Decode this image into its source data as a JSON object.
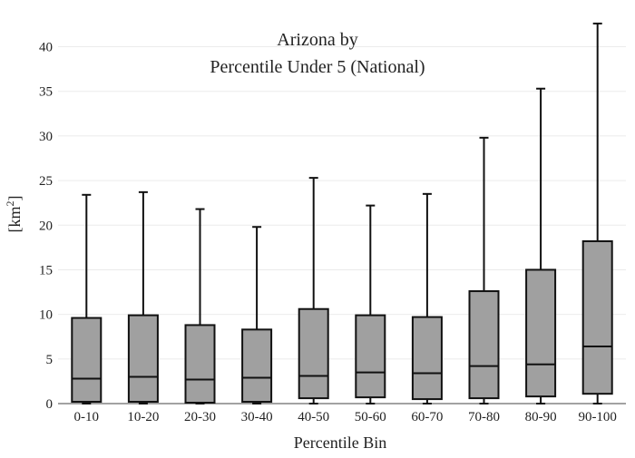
{
  "chart_data": {
    "type": "box",
    "title_line1": "Arizona  by",
    "title_line2": "Percentile Under 5 (National)",
    "xlabel": "Percentile Bin",
    "ylabel_base": "[km",
    "ylabel_sup": "2",
    "ylabel_end": "]",
    "ylim": [
      0,
      43
    ],
    "yticks": [
      0,
      5,
      10,
      15,
      20,
      25,
      30,
      35,
      40
    ],
    "grid": true,
    "box_color": "#a0a0a0",
    "categories": [
      "0-10",
      "10-20",
      "20-30",
      "30-40",
      "40-50",
      "50-60",
      "60-70",
      "70-80",
      "80-90",
      "90-100"
    ],
    "boxes": [
      {
        "min": 0.0,
        "q1": 0.2,
        "median": 2.8,
        "q3": 9.6,
        "max": 23.4
      },
      {
        "min": 0.0,
        "q1": 0.2,
        "median": 3.0,
        "q3": 9.9,
        "max": 23.7
      },
      {
        "min": 0.0,
        "q1": 0.1,
        "median": 2.7,
        "q3": 8.8,
        "max": 21.8
      },
      {
        "min": 0.0,
        "q1": 0.2,
        "median": 2.9,
        "q3": 8.3,
        "max": 19.8
      },
      {
        "min": 0.0,
        "q1": 0.6,
        "median": 3.1,
        "q3": 10.6,
        "max": 25.3
      },
      {
        "min": 0.0,
        "q1": 0.7,
        "median": 3.5,
        "q3": 9.9,
        "max": 22.2
      },
      {
        "min": 0.0,
        "q1": 0.5,
        "median": 3.4,
        "q3": 9.7,
        "max": 23.5
      },
      {
        "min": 0.0,
        "q1": 0.6,
        "median": 4.2,
        "q3": 12.6,
        "max": 29.8
      },
      {
        "min": 0.0,
        "q1": 0.8,
        "median": 4.4,
        "q3": 15.0,
        "max": 35.3
      },
      {
        "min": 0.0,
        "q1": 1.1,
        "median": 6.4,
        "q3": 18.2,
        "max": 42.6
      }
    ]
  }
}
